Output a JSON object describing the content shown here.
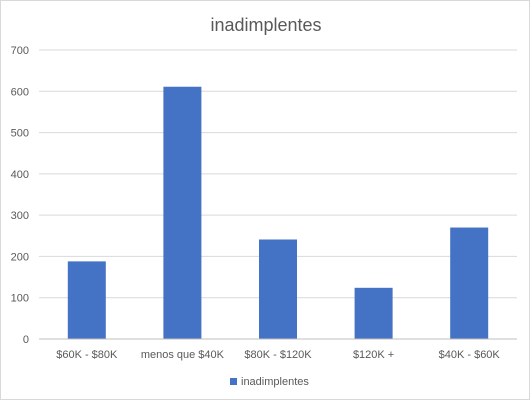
{
  "chart_data": {
    "type": "bar",
    "title": "inadimplentes",
    "categories": [
      "$60K - $80K",
      "menos que $40K",
      "$80K - $120K",
      "$120K +",
      "$40K - $60K"
    ],
    "series": [
      {
        "name": "inadimplentes",
        "values": [
          188,
          611,
          241,
          124,
          270
        ],
        "color": "#4472c4"
      }
    ],
    "ylim": [
      0,
      700
    ],
    "yticks": [
      0,
      100,
      200,
      300,
      400,
      500,
      600,
      700
    ],
    "grid": true,
    "legend": "bottom"
  }
}
